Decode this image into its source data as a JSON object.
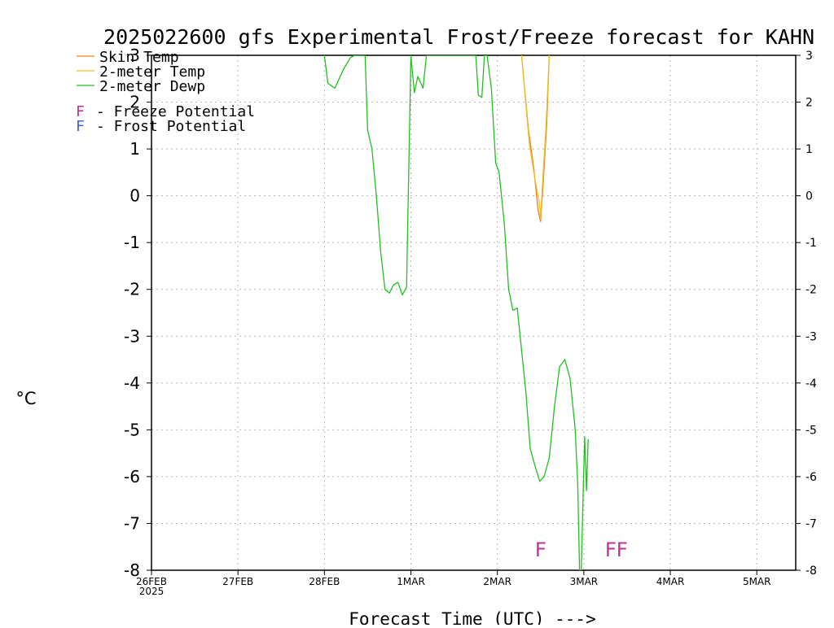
{
  "chart_data": {
    "type": "line",
    "title": "2025022600 gfs Experimental Frost/Freeze forecast for KAHN",
    "xlabel": "Forecast Time (UTC) --->",
    "ylabel_unit": "°C",
    "ylim": [
      -8,
      3
    ],
    "yticks": [
      "-8",
      "-7",
      "-6",
      "-5",
      "-4",
      "-3",
      "-2",
      "-1",
      "0",
      "1",
      "2",
      "3"
    ],
    "xlim": [
      0,
      7.45
    ],
    "xticks": [
      {
        "label": "26FEB",
        "x": 0
      },
      {
        "label": "27FEB",
        "x": 1
      },
      {
        "label": "28FEB",
        "x": 2
      },
      {
        "label": "1MAR",
        "x": 3
      },
      {
        "label": "2MAR",
        "x": 4
      },
      {
        "label": "3MAR",
        "x": 5
      },
      {
        "label": "4MAR",
        "x": 6
      },
      {
        "label": "5MAR",
        "x": 7
      }
    ],
    "xtick_sublabel": "2025",
    "grid": true,
    "legend_position": "top-left",
    "series": [
      {
        "name": "Skin Temp",
        "color": "#f08020",
        "points": [
          [
            4.28,
            3.0
          ],
          [
            4.36,
            1.4
          ],
          [
            4.42,
            0.6
          ],
          [
            4.47,
            -0.3
          ],
          [
            4.5,
            -0.55
          ],
          [
            4.53,
            0.3
          ],
          [
            4.57,
            1.5
          ],
          [
            4.6,
            3.0
          ]
        ]
      },
      {
        "name": "2-meter Temp",
        "color": "#e8c020",
        "points": [
          [
            4.28,
            3.0
          ],
          [
            4.37,
            1.1
          ],
          [
            4.43,
            0.4
          ],
          [
            4.49,
            -0.2
          ],
          [
            4.5,
            -0.5
          ],
          [
            4.52,
            0.2
          ],
          [
            4.56,
            1.4
          ],
          [
            4.6,
            3.0
          ]
        ]
      },
      {
        "name": "2-meter Dewp",
        "color": "#20c020",
        "points": [
          [
            2.0,
            3.0
          ],
          [
            2.04,
            2.4
          ],
          [
            2.12,
            2.3
          ],
          [
            2.22,
            2.7
          ],
          [
            2.3,
            2.95
          ],
          [
            2.35,
            3.0
          ],
          [
            2.47,
            3.0
          ],
          [
            2.5,
            1.4
          ],
          [
            2.55,
            1.0
          ],
          [
            2.6,
            0.0
          ],
          [
            2.65,
            -1.2
          ],
          [
            2.7,
            -2.0
          ],
          [
            2.75,
            -2.08
          ],
          [
            2.8,
            -1.9
          ],
          [
            2.85,
            -1.85
          ],
          [
            2.9,
            -2.12
          ],
          [
            2.95,
            -1.95
          ],
          [
            3.0,
            3.0
          ],
          [
            3.04,
            2.2
          ],
          [
            3.08,
            2.55
          ],
          [
            3.14,
            2.3
          ],
          [
            3.18,
            3.0
          ],
          [
            3.75,
            3.0
          ],
          [
            3.78,
            2.15
          ],
          [
            3.82,
            2.1
          ],
          [
            3.85,
            3.0
          ],
          [
            3.88,
            3.0
          ],
          [
            3.93,
            2.3
          ],
          [
            3.98,
            0.7
          ],
          [
            4.02,
            0.5
          ],
          [
            4.08,
            -0.6
          ],
          [
            4.13,
            -2.0
          ],
          [
            4.18,
            -2.45
          ],
          [
            4.23,
            -2.4
          ],
          [
            4.28,
            -3.3
          ],
          [
            4.33,
            -4.2
          ],
          [
            4.38,
            -5.4
          ],
          [
            4.44,
            -5.8
          ],
          [
            4.49,
            -6.1
          ],
          [
            4.54,
            -6.0
          ],
          [
            4.6,
            -5.6
          ],
          [
            4.66,
            -4.5
          ],
          [
            4.72,
            -3.65
          ],
          [
            4.78,
            -3.5
          ],
          [
            4.84,
            -3.9
          ],
          [
            4.9,
            -5.0
          ],
          [
            4.93,
            -6.2
          ],
          [
            4.95,
            -8.0
          ],
          [
            4.97,
            -8.0
          ],
          [
            4.99,
            -6.5
          ],
          [
            5.01,
            -5.15
          ],
          [
            5.03,
            -6.3
          ],
          [
            5.05,
            -5.2
          ]
        ]
      }
    ],
    "markers": [
      {
        "text": "F",
        "x": 4.5,
        "y": -7.55,
        "kind": "freeze",
        "color": "#c0309a"
      },
      {
        "text": "F",
        "x": 5.31,
        "y": -7.55,
        "kind": "freeze",
        "color": "#c0309a"
      },
      {
        "text": "F",
        "x": 5.44,
        "y": -7.55,
        "kind": "freeze",
        "color": "#c0309a"
      }
    ],
    "potential_legend": [
      {
        "symbol": "F",
        "text": "- Freeze Potential",
        "color": "#c0309a"
      },
      {
        "symbol": "F",
        "text": "- Frost Potential",
        "color": "#4060e0"
      }
    ]
  }
}
